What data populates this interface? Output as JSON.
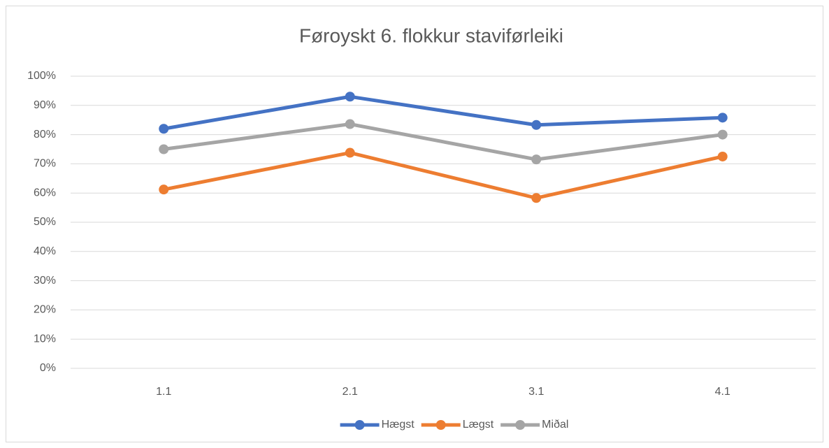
{
  "chart_data": {
    "type": "line",
    "title": "Føroyskt 6. flokkur staviførleiki",
    "categories": [
      "1.1",
      "2.1",
      "3.1",
      "4.1"
    ],
    "series": [
      {
        "name": "Hægst",
        "color": "#4472c4",
        "values": [
          82,
          93,
          83.3,
          85.8
        ]
      },
      {
        "name": "Lægst",
        "color": "#ed7d31",
        "values": [
          61.2,
          73.8,
          58.3,
          72.5
        ]
      },
      {
        "name": "Miðal",
        "color": "#a5a5a5",
        "values": [
          75,
          83.6,
          71.5,
          80
        ]
      }
    ],
    "ylim": [
      0,
      100
    ],
    "yticks": [
      {
        "value": 0,
        "label": "0%"
      },
      {
        "value": 10,
        "label": "10%"
      },
      {
        "value": 20,
        "label": "20%"
      },
      {
        "value": 30,
        "label": "30%"
      },
      {
        "value": 40,
        "label": "40%"
      },
      {
        "value": 50,
        "label": "50%"
      },
      {
        "value": 60,
        "label": "60%"
      },
      {
        "value": 70,
        "label": "70%"
      },
      {
        "value": 80,
        "label": "80%"
      },
      {
        "value": 90,
        "label": "90%"
      },
      {
        "value": 100,
        "label": "100%"
      }
    ],
    "grid": true,
    "legend": "bottom"
  }
}
